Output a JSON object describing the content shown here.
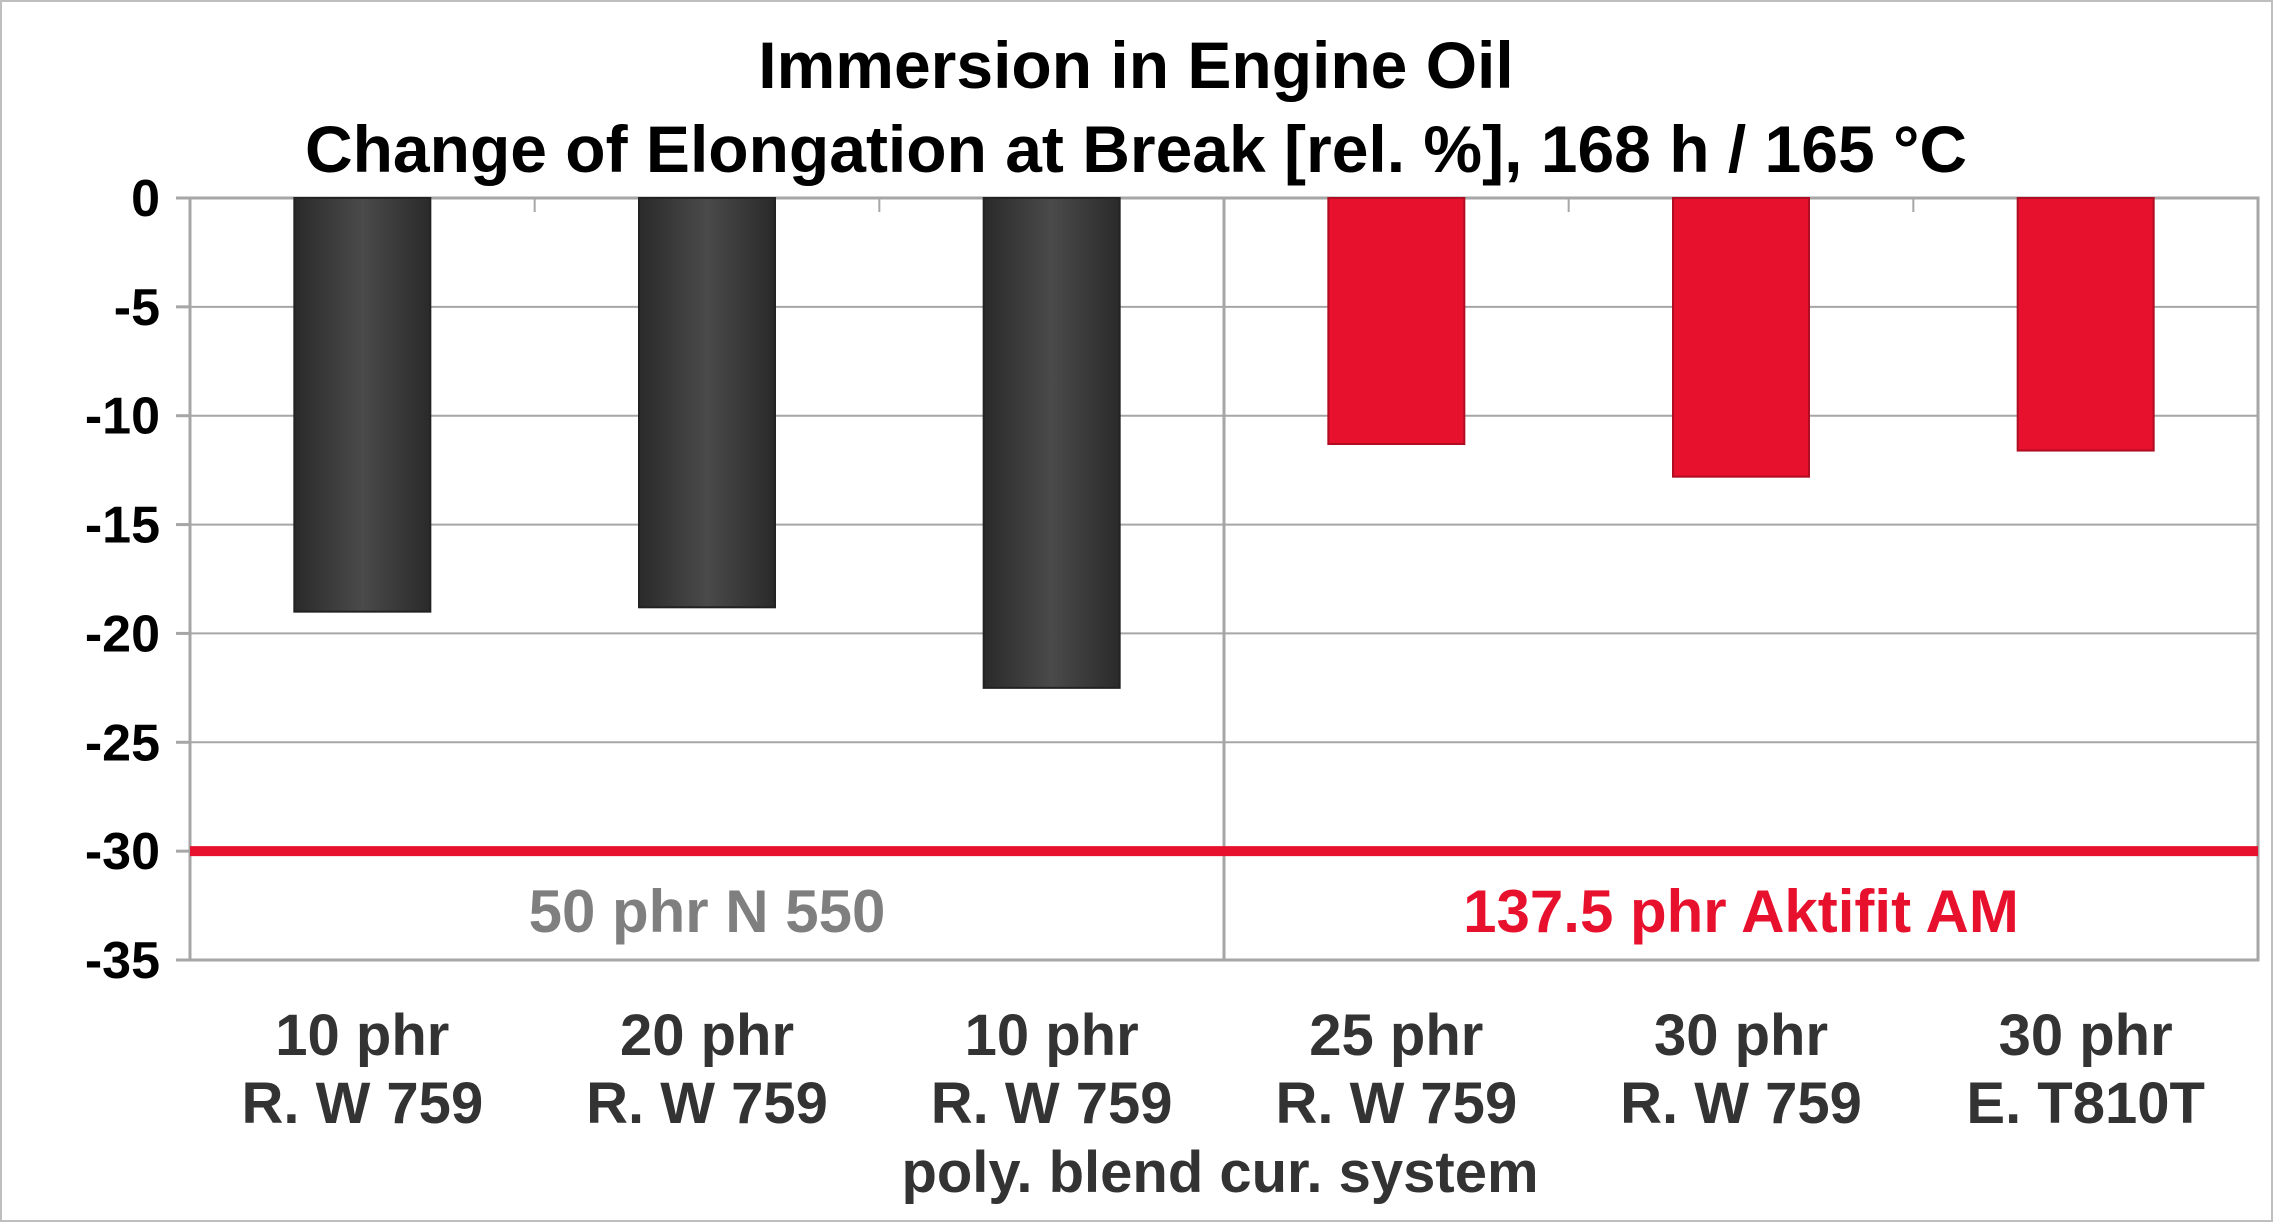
{
  "chart_data": {
    "type": "bar",
    "title_line1": "Immersion in Engine Oil",
    "title_line2": "Change of Elongation at Break [rel. %], 168 h / 165 °C",
    "xlabel": "poly. blend cur. system",
    "ylabel": "",
    "ylim": [
      -35,
      0
    ],
    "yticks": [
      "0",
      "-5",
      "-10",
      "-15",
      "-20",
      "-25",
      "-30",
      "-35"
    ],
    "ytick_values": [
      0,
      -5,
      -10,
      -15,
      -20,
      -25,
      -30,
      -35
    ],
    "grid": true,
    "categories": [
      [
        "10 phr",
        "R. W 759"
      ],
      [
        "20 phr",
        "R. W 759"
      ],
      [
        "10 phr",
        "R. W 759"
      ],
      [
        "25 phr",
        "R. W 759"
      ],
      [
        "30 phr",
        "R. W 759"
      ],
      [
        "30 phr",
        "E. T810T"
      ]
    ],
    "values": [
      -19,
      -18.8,
      -22.5,
      -11.3,
      -12.8,
      -11.6
    ],
    "bar_colors": [
      "#3a3a3a",
      "#3a3a3a",
      "#3a3a3a",
      "#e8112d",
      "#e8112d",
      "#e8112d"
    ],
    "reference_line": {
      "value": -30,
      "color": "#e8112d"
    },
    "groups": [
      {
        "label": "50 phr N 550",
        "color": "#7f7f7f"
      },
      {
        "label": "137.5 phr Aktifit AM",
        "color": "#e8112d"
      }
    ]
  }
}
